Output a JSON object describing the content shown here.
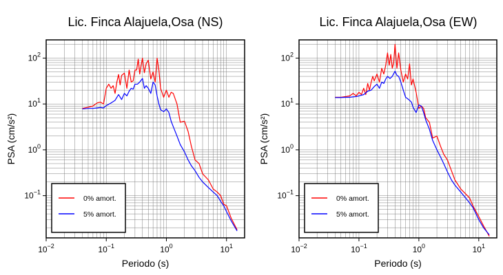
{
  "chart_data": [
    {
      "type": "line",
      "title": "Lic. Finca Alajuela,Osa (NS)",
      "xlabel": "Periodo (s)",
      "ylabel": "PSA (cm/s²)",
      "xscale": "log",
      "yscale": "log",
      "xlim": [
        0.01,
        20
      ],
      "ylim": [
        0.012,
        250
      ],
      "grid": true,
      "legend_position": "bottom-left",
      "x_ticks": [
        {
          "base": "10",
          "exp": "−2",
          "value": 0.01
        },
        {
          "base": "10",
          "exp": "−1",
          "value": 0.1
        },
        {
          "base": "10",
          "exp": "0",
          "value": 1
        },
        {
          "base": "10",
          "exp": "1",
          "value": 10
        }
      ],
      "y_ticks": [
        {
          "base": "10",
          "exp": "−1",
          "value": 0.1
        },
        {
          "base": "10",
          "exp": "0",
          "value": 1
        },
        {
          "base": "10",
          "exp": "1",
          "value": 10
        },
        {
          "base": "10",
          "exp": "2",
          "value": 100
        }
      ],
      "series": [
        {
          "name": "0% amort.",
          "color": "#ff0000",
          "x": [
            0.04,
            0.05,
            0.06,
            0.07,
            0.08,
            0.09,
            0.1,
            0.11,
            0.12,
            0.13,
            0.14,
            0.15,
            0.16,
            0.17,
            0.18,
            0.2,
            0.22,
            0.24,
            0.26,
            0.28,
            0.3,
            0.32,
            0.34,
            0.36,
            0.38,
            0.4,
            0.43,
            0.46,
            0.5,
            0.55,
            0.6,
            0.65,
            0.7,
            0.75,
            0.8,
            0.9,
            1.0,
            1.1,
            1.2,
            1.3,
            1.5,
            1.7,
            2.0,
            2.3,
            2.6,
            3.0,
            3.5,
            4.0,
            5.0,
            6.0,
            7.0,
            8.0,
            9.0,
            10.0,
            12.0,
            15.0
          ],
          "y": [
            8,
            8.5,
            9,
            10.5,
            11,
            10,
            22,
            27,
            22,
            25,
            17,
            30,
            44,
            26,
            42,
            47,
            22,
            55,
            30,
            32,
            55,
            55,
            95,
            45,
            70,
            100,
            48,
            75,
            90,
            35,
            50,
            30,
            100,
            55,
            22,
            14,
            20,
            14,
            18,
            17,
            10,
            4,
            4.2,
            2.5,
            1.2,
            0.6,
            0.5,
            0.3,
            0.22,
            0.14,
            0.12,
            0.1,
            0.065,
            0.06,
            0.032,
            0.018
          ]
        },
        {
          "name": "5% amort.",
          "color": "#0000ff",
          "x": [
            0.04,
            0.05,
            0.06,
            0.07,
            0.08,
            0.09,
            0.1,
            0.12,
            0.14,
            0.16,
            0.18,
            0.2,
            0.22,
            0.24,
            0.26,
            0.28,
            0.3,
            0.33,
            0.36,
            0.4,
            0.43,
            0.46,
            0.5,
            0.55,
            0.6,
            0.65,
            0.7,
            0.75,
            0.8,
            0.9,
            1.0,
            1.1,
            1.2,
            1.3,
            1.5,
            1.7,
            2.0,
            2.3,
            2.6,
            3.0,
            3.5,
            4.0,
            5.0,
            6.0,
            7.0,
            8.0,
            9.0,
            10.0,
            12.0,
            15.0
          ],
          "y": [
            7.8,
            8,
            8,
            8.2,
            8.4,
            8.2,
            9.2,
            10.5,
            12,
            16,
            12.5,
            17,
            15,
            19,
            22,
            21,
            27,
            27,
            30,
            36,
            22,
            25,
            22,
            17,
            30,
            26,
            15,
            10,
            7.5,
            6.8,
            7.8,
            6.5,
            4.2,
            3.2,
            2.0,
            1.3,
            0.9,
            0.6,
            0.45,
            0.35,
            0.25,
            0.2,
            0.15,
            0.12,
            0.1,
            0.075,
            0.06,
            0.045,
            0.028,
            0.017
          ]
        }
      ]
    },
    {
      "type": "line",
      "title": "Lic. Finca Alajuela,Osa (EW)",
      "xlabel": "Periodo (s)",
      "ylabel": "PSA (cm/s²)",
      "xscale": "log",
      "yscale": "log",
      "xlim": [
        0.01,
        20
      ],
      "ylim": [
        0.012,
        250
      ],
      "grid": true,
      "legend_position": "bottom-left",
      "x_ticks": [
        {
          "base": "10",
          "exp": "−2",
          "value": 0.01
        },
        {
          "base": "10",
          "exp": "−1",
          "value": 0.1
        },
        {
          "base": "10",
          "exp": "0",
          "value": 1
        },
        {
          "base": "10",
          "exp": "1",
          "value": 10
        }
      ],
      "y_ticks": [
        {
          "base": "10",
          "exp": "−1",
          "value": 0.1
        },
        {
          "base": "10",
          "exp": "0",
          "value": 1
        },
        {
          "base": "10",
          "exp": "1",
          "value": 10
        },
        {
          "base": "10",
          "exp": "2",
          "value": 100
        }
      ],
      "series": [
        {
          "name": "0% amort.",
          "color": "#ff0000",
          "x": [
            0.04,
            0.05,
            0.06,
            0.07,
            0.08,
            0.09,
            0.1,
            0.11,
            0.12,
            0.13,
            0.14,
            0.15,
            0.16,
            0.17,
            0.18,
            0.2,
            0.22,
            0.24,
            0.26,
            0.28,
            0.3,
            0.32,
            0.34,
            0.36,
            0.38,
            0.4,
            0.43,
            0.46,
            0.5,
            0.55,
            0.6,
            0.65,
            0.7,
            0.75,
            0.8,
            0.9,
            1.0,
            1.1,
            1.2,
            1.3,
            1.5,
            1.7,
            2.0,
            2.3,
            2.6,
            3.0,
            3.5,
            4.0,
            5.0,
            6.0,
            7.0,
            8.0,
            9.0,
            10.0,
            12.0,
            15.0
          ],
          "y": [
            14,
            14,
            14.5,
            15,
            17,
            15,
            18,
            16,
            22,
            16,
            28,
            20,
            30,
            40,
            32,
            45,
            30,
            60,
            45,
            70,
            130,
            70,
            120,
            60,
            80,
            200,
            60,
            130,
            55,
            30,
            45,
            35,
            75,
            26,
            35,
            18,
            8,
            9,
            8,
            5,
            4,
            1.8,
            2.0,
            1.2,
            0.8,
            0.6,
            0.35,
            0.22,
            0.14,
            0.11,
            0.09,
            0.06,
            0.045,
            0.035,
            0.022,
            0.013
          ]
        },
        {
          "name": "5% amort.",
          "color": "#0000ff",
          "x": [
            0.04,
            0.05,
            0.06,
            0.07,
            0.08,
            0.09,
            0.1,
            0.12,
            0.14,
            0.16,
            0.18,
            0.2,
            0.22,
            0.24,
            0.26,
            0.28,
            0.3,
            0.33,
            0.36,
            0.4,
            0.43,
            0.46,
            0.5,
            0.55,
            0.6,
            0.65,
            0.7,
            0.75,
            0.8,
            0.9,
            1.0,
            1.1,
            1.2,
            1.3,
            1.5,
            1.7,
            2.0,
            2.3,
            2.6,
            3.0,
            3.5,
            4.0,
            5.0,
            6.0,
            7.0,
            8.0,
            9.0,
            10.0,
            12.0,
            15.0
          ],
          "y": [
            13.8,
            13.8,
            14,
            14,
            14.3,
            14.5,
            15,
            16,
            19,
            20,
            24,
            27,
            22,
            30,
            28,
            35,
            40,
            36,
            40,
            52,
            42,
            40,
            30,
            20,
            14,
            13,
            12,
            11,
            8.5,
            6.5,
            9.5,
            9,
            6.5,
            4.5,
            2.8,
            1.6,
            1.0,
            0.7,
            0.5,
            0.33,
            0.22,
            0.17,
            0.12,
            0.09,
            0.07,
            0.055,
            0.04,
            0.03,
            0.02,
            0.014
          ]
        }
      ]
    }
  ]
}
